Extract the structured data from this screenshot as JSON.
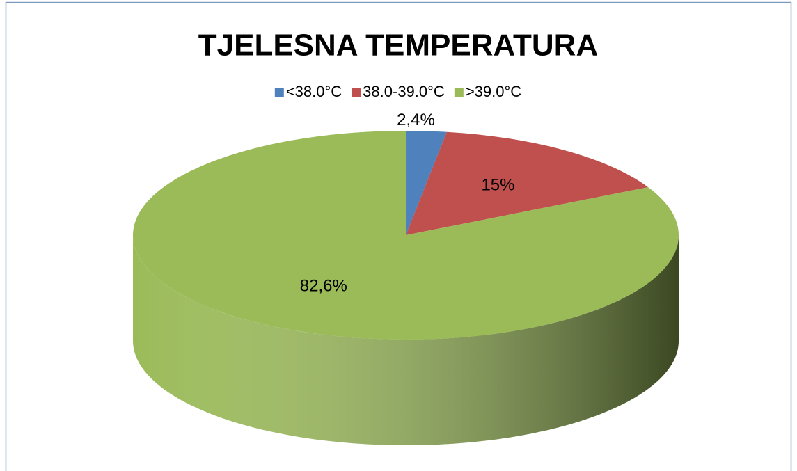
{
  "chart_data": {
    "type": "pie",
    "title": "TJELESNA TEMPERATURA",
    "categories": [
      "<38.0°C",
      "38.0-39.0°C",
      ">39.0°C"
    ],
    "values": [
      2.4,
      15,
      82.6
    ],
    "value_labels": [
      "2,4%",
      "15%",
      "82,6%"
    ],
    "colors": [
      "#4f81bd",
      "#c0504d",
      "#9bbb59"
    ],
    "legend": "top"
  }
}
